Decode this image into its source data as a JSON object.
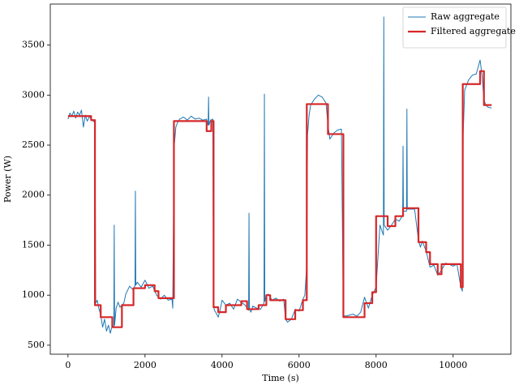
{
  "chart_data": {
    "type": "line",
    "xlabel": "Time (s)",
    "ylabel": "Power (W)",
    "xlim": [
      -460,
      11500
    ],
    "ylim": [
      410,
      3910
    ],
    "xticks": [
      0,
      2000,
      4000,
      6000,
      8000,
      10000
    ],
    "yticks": [
      500,
      1000,
      1500,
      2000,
      2500,
      3000,
      3500
    ],
    "legend": "upper right",
    "series": [
      {
        "name": "Raw aggregate",
        "color": "#1f77b4",
        "width": 1,
        "x": [
          0,
          50,
          100,
          150,
          200,
          250,
          300,
          350,
          400,
          450,
          500,
          550,
          600,
          650,
          700,
          720,
          760,
          800,
          850,
          900,
          950,
          1000,
          1050,
          1100,
          1150,
          1190,
          1200,
          1210,
          1250,
          1300,
          1350,
          1400,
          1450,
          1500,
          1600,
          1700,
          1740,
          1750,
          1760,
          1800,
          1900,
          2000,
          2100,
          2200,
          2300,
          2400,
          2500,
          2600,
          2700,
          2720,
          2740,
          2760,
          2800,
          2850,
          2900,
          3000,
          3100,
          3200,
          3300,
          3400,
          3500,
          3600,
          3640,
          3650,
          3660,
          3700,
          3760,
          3780,
          3800,
          3850,
          3900,
          3950,
          4000,
          4100,
          4200,
          4300,
          4400,
          4500,
          4600,
          4690,
          4700,
          4710,
          4750,
          4800,
          4900,
          5000,
          5090,
          5100,
          5110,
          5150,
          5200,
          5300,
          5400,
          5500,
          5600,
          5650,
          5700,
          5800,
          5900,
          6000,
          6100,
          6150,
          6200,
          6220,
          6260,
          6300,
          6400,
          6500,
          6600,
          6700,
          6750,
          6800,
          6900,
          7000,
          7100,
          7150,
          7200,
          7300,
          7400,
          7500,
          7600,
          7700,
          7800,
          7900,
          8000,
          8100,
          8190,
          8200,
          8210,
          8300,
          8400,
          8500,
          8600,
          8690,
          8700,
          8710,
          8790,
          8800,
          8810,
          8900,
          9000,
          9100,
          9150,
          9200,
          9300,
          9400,
          9500,
          9600,
          9700,
          9800,
          9900,
          10000,
          10100,
          10200,
          10240,
          10260,
          10300,
          10400,
          10500,
          10600,
          10700,
          10750,
          10800,
          10850,
          10900,
          11000
        ],
        "values": [
          2760,
          2820,
          2790,
          2840,
          2770,
          2830,
          2800,
          2850,
          2680,
          2800,
          2740,
          2780,
          2770,
          2740,
          2730,
          920,
          950,
          870,
          800,
          680,
          760,
          640,
          700,
          620,
          700,
          680,
          1700,
          700,
          870,
          930,
          880,
          900,
          920,
          1010,
          1090,
          1050,
          1100,
          2040,
          1100,
          1130,
          1080,
          1150,
          1070,
          1090,
          1000,
          960,
          1000,
          950,
          960,
          870,
          1800,
          2500,
          2680,
          2730,
          2760,
          2780,
          2750,
          2790,
          2760,
          2770,
          2750,
          2760,
          2700,
          2980,
          2700,
          2750,
          2760,
          900,
          850,
          820,
          780,
          850,
          950,
          900,
          920,
          860,
          960,
          930,
          900,
          850,
          1820,
          860,
          830,
          890,
          870,
          860,
          920,
          3010,
          940,
          1000,
          1010,
          950,
          970,
          940,
          960,
          760,
          730,
          760,
          860,
          840,
          960,
          1000,
          1300,
          2600,
          2800,
          2900,
          2960,
          3000,
          2980,
          2920,
          2700,
          2560,
          2620,
          2650,
          2660,
          800,
          790,
          800,
          810,
          790,
          830,
          980,
          870,
          1000,
          1080,
          1700,
          1600,
          3780,
          1700,
          1650,
          1700,
          1760,
          1740,
          1800,
          2490,
          1840,
          1840,
          2860,
          1860,
          1860,
          1860,
          1550,
          1480,
          1540,
          1440,
          1280,
          1300,
          1200,
          1250,
          1320,
          1310,
          1290,
          1310,
          1080,
          1040,
          2600,
          3050,
          3150,
          3200,
          3210,
          3350,
          3200,
          2950,
          2900,
          2880,
          2870
        ]
      },
      {
        "name": "Filtered aggregate",
        "color": "#d62728",
        "width": 2.2,
        "x": [
          0,
          600,
          600,
          700,
          700,
          850,
          850,
          1150,
          1150,
          1400,
          1400,
          1700,
          1700,
          2000,
          2000,
          2250,
          2250,
          2350,
          2350,
          2750,
          2750,
          3600,
          3600,
          3720,
          3720,
          3780,
          3780,
          3900,
          3900,
          4100,
          4100,
          4500,
          4500,
          4650,
          4650,
          4950,
          4950,
          5150,
          5150,
          5250,
          5250,
          5650,
          5650,
          5900,
          5900,
          6100,
          6100,
          6200,
          6200,
          6750,
          6750,
          7150,
          7150,
          7700,
          7700,
          7900,
          7900,
          8000,
          8000,
          8300,
          8300,
          8500,
          8500,
          8700,
          8700,
          9100,
          9100,
          9300,
          9300,
          9400,
          9400,
          9600,
          9600,
          9700,
          9700,
          10200,
          10200,
          10250,
          10250,
          10700,
          10700,
          10800,
          10800,
          11000
        ],
        "values": [
          2790,
          2790,
          2750,
          2750,
          900,
          900,
          780,
          780,
          680,
          680,
          900,
          900,
          1070,
          1070,
          1100,
          1100,
          1040,
          1040,
          970,
          970,
          2740,
          2740,
          2640,
          2640,
          2740,
          2740,
          880,
          880,
          830,
          830,
          900,
          900,
          940,
          940,
          860,
          860,
          900,
          900,
          1000,
          1000,
          950,
          950,
          760,
          760,
          850,
          850,
          950,
          950,
          2910,
          2910,
          2610,
          2610,
          780,
          780,
          920,
          920,
          1030,
          1030,
          1790,
          1790,
          1690,
          1690,
          1790,
          1790,
          1870,
          1870,
          1530,
          1530,
          1430,
          1430,
          1310,
          1310,
          1210,
          1210,
          1310,
          1310,
          1080,
          1080,
          3110,
          3110,
          3240,
          3240,
          2900,
          2900
        ]
      }
    ]
  }
}
